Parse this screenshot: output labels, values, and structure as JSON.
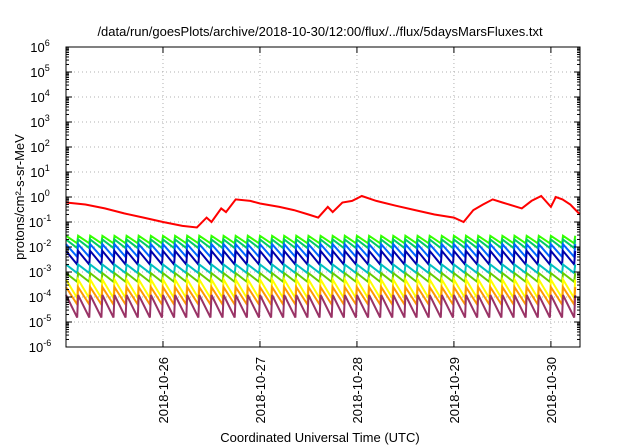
{
  "chart_data": {
    "type": "line",
    "title": "/data/run/goesPlots/archive/2018-10-30/12:00/flux/../flux/5daysMarsFluxes.txt",
    "xlabel": "Coordinated Universal Time (UTC)",
    "ylabel": "protons/cm²-s-sr-MeV",
    "yscale": "log",
    "ylim": [
      1e-06,
      1000000.0
    ],
    "xlim": [
      0,
      5.3
    ],
    "yticks": [
      {
        "base": "10",
        "exp": "-6"
      },
      {
        "base": "10",
        "exp": "-5"
      },
      {
        "base": "10",
        "exp": "-4"
      },
      {
        "base": "10",
        "exp": "-3"
      },
      {
        "base": "10",
        "exp": "-2"
      },
      {
        "base": "10",
        "exp": "-1"
      },
      {
        "base": "10",
        "exp": "0"
      },
      {
        "base": "10",
        "exp": "1"
      },
      {
        "base": "10",
        "exp": "2"
      },
      {
        "base": "10",
        "exp": "3"
      },
      {
        "base": "10",
        "exp": "4"
      },
      {
        "base": "10",
        "exp": "5"
      },
      {
        "base": "10",
        "exp": "6"
      }
    ],
    "xticks": [
      {
        "x": 1,
        "label": "2018-10-26"
      },
      {
        "x": 2,
        "label": "2018-10-27"
      },
      {
        "x": 3,
        "label": "2018-10-28"
      },
      {
        "x": 4,
        "label": "2018-10-29"
      },
      {
        "x": 5,
        "label": "2018-10-30"
      }
    ],
    "grid": true,
    "series": [
      {
        "color": "#ff0000",
        "kind": "drift",
        "points": [
          [
            0,
            0.6
          ],
          [
            0.2,
            0.5
          ],
          [
            0.4,
            0.35
          ],
          [
            0.6,
            0.22
          ],
          [
            0.8,
            0.15
          ],
          [
            1.0,
            0.1
          ],
          [
            1.2,
            0.07
          ],
          [
            1.35,
            0.06
          ],
          [
            1.45,
            0.15
          ],
          [
            1.5,
            0.1
          ],
          [
            1.6,
            0.35
          ],
          [
            1.65,
            0.25
          ],
          [
            1.75,
            0.8
          ],
          [
            1.9,
            0.7
          ],
          [
            2.0,
            0.55
          ],
          [
            2.2,
            0.4
          ],
          [
            2.35,
            0.3
          ],
          [
            2.5,
            0.2
          ],
          [
            2.6,
            0.15
          ],
          [
            2.7,
            0.4
          ],
          [
            2.75,
            0.25
          ],
          [
            2.85,
            0.6
          ],
          [
            2.95,
            0.7
          ],
          [
            3.05,
            1.1
          ],
          [
            3.2,
            0.7
          ],
          [
            3.4,
            0.45
          ],
          [
            3.6,
            0.3
          ],
          [
            3.8,
            0.2
          ],
          [
            4.0,
            0.15
          ],
          [
            4.1,
            0.1
          ],
          [
            4.2,
            0.3
          ],
          [
            4.3,
            0.5
          ],
          [
            4.4,
            0.8
          ],
          [
            4.5,
            0.6
          ],
          [
            4.7,
            0.35
          ],
          [
            4.9,
            0.25
          ],
          [
            5.0,
            0.18
          ],
          [
            5.1,
            0.14
          ],
          [
            5.3,
            0.12
          ]
        ],
        "dense": [
          [
            4.7,
            0.35
          ],
          [
            4.8,
            0.7
          ],
          [
            4.9,
            1.1
          ],
          [
            5.0,
            0.4
          ],
          [
            5.05,
            1.0
          ],
          [
            5.12,
            0.8
          ],
          [
            5.2,
            0.5
          ],
          [
            5.3,
            0.2
          ]
        ]
      },
      {
        "color": "#33ff00",
        "kind": "sawtooth",
        "peak": 0.028,
        "trough": 0.014,
        "period": 0.125
      },
      {
        "color": "#00cc66",
        "kind": "sawtooth",
        "peak": 0.02,
        "trough": 0.009,
        "period": 0.125
      },
      {
        "color": "#0066ff",
        "kind": "sawtooth",
        "peak": 0.013,
        "trough": 0.004,
        "period": 0.125
      },
      {
        "color": "#0000aa",
        "kind": "sawtooth",
        "peak": 0.007,
        "trough": 0.002,
        "period": 0.125
      },
      {
        "color": "#00bfbf",
        "kind": "sawtooth",
        "peak": 0.002,
        "trough": 0.0009,
        "period": 0.125
      },
      {
        "color": "#66cc00",
        "kind": "sawtooth",
        "peak": 0.0009,
        "trough": 0.0004,
        "period": 0.125
      },
      {
        "color": "#ffff00",
        "kind": "sawtooth",
        "peak": 0.0005,
        "trough": 9e-05,
        "period": 0.125
      },
      {
        "color": "#ff9900",
        "kind": "sawtooth",
        "peak": 0.00025,
        "trough": 5e-05,
        "period": 0.125
      },
      {
        "color": "#993366",
        "kind": "sawtooth",
        "peak": 0.00012,
        "trough": 1.5e-05,
        "period": 0.125
      }
    ]
  }
}
